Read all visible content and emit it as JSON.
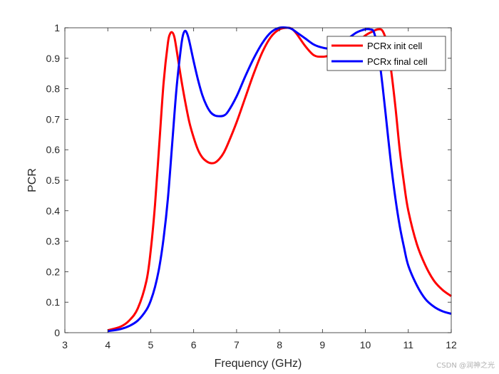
{
  "chart_data": {
    "type": "line",
    "title": "",
    "xlabel": "Frequency (GHz)",
    "ylabel": "PCR",
    "xlim": [
      3,
      12
    ],
    "ylim": [
      0,
      1
    ],
    "xticks": [
      3,
      4,
      5,
      6,
      7,
      8,
      9,
      10,
      11,
      12
    ],
    "xtick_labels": [
      "3",
      "4",
      "5",
      "6",
      "7",
      "8",
      "9",
      "10",
      "11",
      "12"
    ],
    "yticks": [
      0,
      0.1,
      0.2,
      0.3,
      0.4,
      0.5,
      0.6,
      0.7,
      0.8,
      0.9,
      1
    ],
    "ytick_labels": [
      "0",
      "0.1",
      "0.2",
      "0.3",
      "0.4",
      "0.5",
      "0.6",
      "0.7",
      "0.8",
      "0.9",
      "1"
    ],
    "grid": false,
    "legend_position": "top-right",
    "series": [
      {
        "name": "PCRx init cell",
        "color": "#ff0000",
        "x": [
          4.0,
          4.3,
          4.5,
          4.7,
          4.9,
          5.0,
          5.1,
          5.2,
          5.3,
          5.4,
          5.45,
          5.5,
          5.55,
          5.6,
          5.7,
          5.8,
          5.9,
          6.0,
          6.1,
          6.2,
          6.3,
          6.4,
          6.5,
          6.6,
          6.7,
          6.8,
          7.0,
          7.2,
          7.4,
          7.6,
          7.8,
          8.0,
          8.2,
          8.3,
          8.4,
          8.6,
          8.8,
          9.0,
          9.2,
          9.4,
          9.6,
          9.8,
          10.0,
          10.2,
          10.3,
          10.4,
          10.5,
          10.6,
          10.7,
          10.8,
          10.9,
          11.0,
          11.2,
          11.4,
          11.6,
          11.8,
          12.0
        ],
        "y": [
          0.008,
          0.02,
          0.04,
          0.08,
          0.17,
          0.27,
          0.42,
          0.62,
          0.82,
          0.95,
          0.98,
          0.985,
          0.97,
          0.93,
          0.84,
          0.76,
          0.69,
          0.64,
          0.6,
          0.575,
          0.562,
          0.556,
          0.558,
          0.57,
          0.59,
          0.62,
          0.69,
          0.77,
          0.85,
          0.92,
          0.97,
          0.995,
          1.0,
          0.995,
          0.98,
          0.94,
          0.91,
          0.905,
          0.91,
          0.92,
          0.935,
          0.95,
          0.975,
          0.99,
          0.995,
          0.99,
          0.95,
          0.86,
          0.74,
          0.6,
          0.49,
          0.4,
          0.29,
          0.22,
          0.17,
          0.14,
          0.12
        ]
      },
      {
        "name": "PCRx final cell",
        "color": "#0000ff",
        "x": [
          4.0,
          4.3,
          4.5,
          4.7,
          4.9,
          5.0,
          5.1,
          5.2,
          5.3,
          5.4,
          5.5,
          5.6,
          5.7,
          5.75,
          5.8,
          5.85,
          5.9,
          6.0,
          6.1,
          6.2,
          6.3,
          6.4,
          6.5,
          6.6,
          6.7,
          6.8,
          7.0,
          7.2,
          7.4,
          7.6,
          7.8,
          8.0,
          8.2,
          8.3,
          8.4,
          8.6,
          8.8,
          9.0,
          9.2,
          9.4,
          9.6,
          9.8,
          10.0,
          10.1,
          10.2,
          10.3,
          10.4,
          10.5,
          10.6,
          10.7,
          10.8,
          10.9,
          11.0,
          11.2,
          11.4,
          11.6,
          11.8,
          12.0
        ],
        "y": [
          0.005,
          0.012,
          0.022,
          0.04,
          0.075,
          0.105,
          0.15,
          0.215,
          0.31,
          0.44,
          0.62,
          0.8,
          0.93,
          0.975,
          0.99,
          0.98,
          0.955,
          0.89,
          0.83,
          0.78,
          0.745,
          0.722,
          0.712,
          0.71,
          0.712,
          0.725,
          0.775,
          0.84,
          0.9,
          0.95,
          0.985,
          1.0,
          1.0,
          0.995,
          0.985,
          0.965,
          0.945,
          0.935,
          0.932,
          0.945,
          0.965,
          0.985,
          0.995,
          0.995,
          0.985,
          0.92,
          0.81,
          0.68,
          0.55,
          0.44,
          0.35,
          0.28,
          0.22,
          0.155,
          0.11,
          0.085,
          0.07,
          0.062
        ]
      }
    ]
  },
  "watermark_text": "CSDN @润神之光"
}
